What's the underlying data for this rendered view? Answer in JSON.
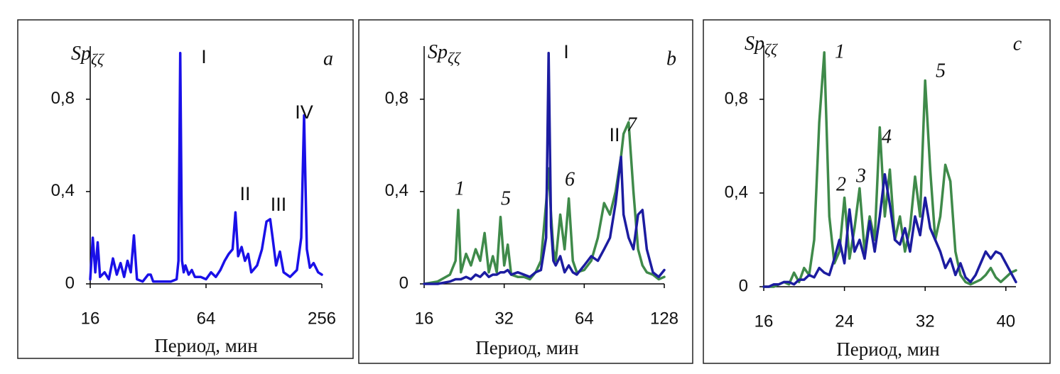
{
  "chart_data": [
    {
      "type": "line",
      "label": "a",
      "xlabel": "Период, мин",
      "ylabel": "Sp",
      "ylabel_sub": "ζζ",
      "log_scale": true,
      "xlim": [
        16,
        256
      ],
      "xticks": [
        16,
        64,
        256
      ],
      "ylim": [
        0,
        1.03
      ],
      "yticks": [
        0,
        {
          "value": 0.4,
          "label": "0,4"
        },
        {
          "value": 0.8,
          "label": "0,8"
        }
      ],
      "annotations": [
        "I",
        "II",
        "III",
        "IV"
      ],
      "color": "#1a10e8",
      "x": [
        16,
        16.5,
        17,
        17.5,
        18,
        19,
        20,
        21,
        22,
        23,
        24,
        25,
        26,
        27,
        28,
        30,
        32,
        33,
        34,
        38,
        42,
        45,
        46,
        47,
        48,
        49,
        50,
        52,
        54,
        56,
        60,
        64,
        68,
        72,
        76,
        80,
        84,
        88,
        91,
        94,
        98,
        102,
        106,
        110,
        118,
        125,
        132,
        138,
        142,
        148,
        155,
        162,
        175,
        190,
        200,
        207,
        214,
        222,
        232,
        245,
        256
      ],
      "values": [
        0.02,
        0.2,
        0.05,
        0.18,
        0.03,
        0.05,
        0.02,
        0.11,
        0.04,
        0.09,
        0.03,
        0.1,
        0.05,
        0.21,
        0.02,
        0.01,
        0.04,
        0.04,
        0.01,
        0.01,
        0.01,
        0.02,
        0.1,
        1.0,
        0.1,
        0.05,
        0.08,
        0.04,
        0.06,
        0.03,
        0.03,
        0.02,
        0.05,
        0.03,
        0.06,
        0.1,
        0.13,
        0.15,
        0.31,
        0.12,
        0.16,
        0.1,
        0.13,
        0.05,
        0.08,
        0.15,
        0.27,
        0.28,
        0.2,
        0.08,
        0.14,
        0.05,
        0.03,
        0.06,
        0.2,
        0.73,
        0.15,
        0.07,
        0.09,
        0.05,
        0.04
      ]
    },
    {
      "type": "line",
      "label": "b",
      "xlabel": "Период, мин",
      "ylabel": "Sp",
      "ylabel_sub": "ζζ",
      "log_scale": true,
      "xlim": [
        16,
        128
      ],
      "xticks": [
        16,
        32,
        64,
        128
      ],
      "ylim": [
        0,
        1.03
      ],
      "yticks": [
        0,
        {
          "value": 0.4,
          "label": "0,4"
        },
        {
          "value": 0.8,
          "label": "0,8"
        }
      ],
      "annotations": [
        "1",
        "5",
        "I",
        "6",
        "II",
        "7"
      ],
      "x": [
        16,
        18,
        20,
        21,
        21.5,
        22,
        23,
        24,
        25,
        26,
        27,
        28,
        29,
        30,
        31,
        32,
        33,
        34,
        36,
        38,
        40,
        42,
        44,
        46,
        47,
        48,
        49,
        50,
        52,
        54,
        56,
        58,
        60,
        64,
        68,
        72,
        76,
        80,
        84,
        88,
        90,
        94,
        98,
        102,
        106,
        110,
        116,
        122,
        128
      ],
      "series": [
        {
          "color": "#3f8a4a",
          "values": [
            0,
            0.01,
            0.04,
            0.1,
            0.32,
            0.05,
            0.13,
            0.08,
            0.15,
            0.1,
            0.22,
            0.05,
            0.12,
            0.05,
            0.29,
            0.08,
            0.17,
            0.04,
            0.03,
            0.03,
            0.02,
            0.05,
            0.1,
            0.35,
            0.5,
            0.3,
            0.15,
            0.1,
            0.3,
            0.15,
            0.37,
            0.1,
            0.05,
            0.06,
            0.1,
            0.2,
            0.35,
            0.3,
            0.4,
            0.55,
            0.65,
            0.7,
            0.4,
            0.15,
            0.08,
            0.05,
            0.04,
            0.02,
            0.03
          ]
        },
        {
          "color": "#1c1ca0",
          "values": [
            0,
            0,
            0.01,
            0.02,
            0.02,
            0.02,
            0.03,
            0.02,
            0.04,
            0.03,
            0.05,
            0.03,
            0.04,
            0.04,
            0.05,
            0.05,
            0.06,
            0.04,
            0.05,
            0.04,
            0.03,
            0.05,
            0.06,
            0.2,
            1.0,
            0.25,
            0.1,
            0.08,
            0.12,
            0.05,
            0.08,
            0.05,
            0.04,
            0.08,
            0.12,
            0.1,
            0.15,
            0.2,
            0.35,
            0.55,
            0.3,
            0.2,
            0.15,
            0.3,
            0.32,
            0.15,
            0.05,
            0.03,
            0.06
          ]
        }
      ]
    },
    {
      "type": "line",
      "label": "c",
      "xlabel": "Период, мин",
      "ylabel": "Sp",
      "ylabel_sub": "ζζ",
      "log_scale": false,
      "xlim": [
        16,
        41
      ],
      "xticks": [
        16,
        24,
        32,
        40
      ],
      "ylim": [
        0,
        1.03
      ],
      "yticks": [
        0,
        {
          "value": 0.4,
          "label": "0,4"
        },
        {
          "value": 0.8,
          "label": "0,8"
        }
      ],
      "annotations": [
        "1",
        "2",
        "3",
        "4",
        "5"
      ],
      "x": [
        16,
        16.5,
        17,
        17.5,
        18,
        18.5,
        19,
        19.5,
        20,
        20.5,
        21,
        21.5,
        22,
        22.5,
        23,
        23.5,
        24,
        24.5,
        25,
        25.5,
        26,
        26.5,
        27,
        27.5,
        28,
        28.5,
        29,
        29.5,
        30,
        30.5,
        31,
        31.5,
        32,
        32.5,
        33,
        33.5,
        34,
        34.5,
        35,
        35.5,
        36,
        36.5,
        37,
        37.5,
        38,
        38.5,
        39,
        39.5,
        40,
        40.5,
        41
      ],
      "series": [
        {
          "color": "#3f8a4a",
          "values": [
            0,
            0,
            0,
            0.01,
            0.02,
            0.01,
            0.06,
            0.02,
            0.08,
            0.05,
            0.2,
            0.7,
            1.0,
            0.3,
            0.1,
            0.15,
            0.38,
            0.12,
            0.25,
            0.42,
            0.15,
            0.3,
            0.2,
            0.68,
            0.3,
            0.5,
            0.2,
            0.3,
            0.15,
            0.25,
            0.47,
            0.3,
            0.88,
            0.5,
            0.2,
            0.3,
            0.52,
            0.45,
            0.15,
            0.05,
            0.02,
            0.01,
            0.02,
            0.03,
            0.05,
            0.08,
            0.04,
            0.02,
            0.04,
            0.06,
            0.07
          ]
        },
        {
          "color": "#1c1ca0",
          "values": [
            0,
            0,
            0.01,
            0.01,
            0.02,
            0.02,
            0.01,
            0.03,
            0.03,
            0.05,
            0.04,
            0.08,
            0.06,
            0.05,
            0.12,
            0.2,
            0.1,
            0.33,
            0.15,
            0.2,
            0.12,
            0.28,
            0.15,
            0.3,
            0.48,
            0.35,
            0.2,
            0.18,
            0.25,
            0.15,
            0.3,
            0.22,
            0.38,
            0.25,
            0.2,
            0.15,
            0.08,
            0.12,
            0.05,
            0.1,
            0.04,
            0.02,
            0.05,
            0.1,
            0.15,
            0.12,
            0.15,
            0.14,
            0.1,
            0.06,
            0.02
          ]
        }
      ]
    }
  ]
}
